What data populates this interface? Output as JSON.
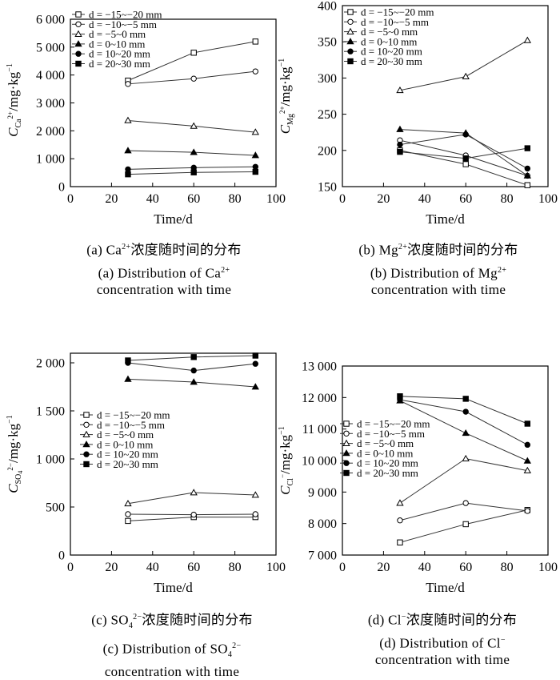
{
  "chart_data": [
    {
      "panel": "a",
      "type": "line",
      "xlabel": "Time/d",
      "ylabel": "C_Ca2+/mg·kg⁻¹",
      "ylabel_main": "C",
      "ylabel_sub": "Ca",
      "ylabel_sup": "2+",
      "ylabel_unit": "/mg·kg",
      "ylabel_exp": "−1",
      "xlim": [
        0,
        100
      ],
      "ylim": [
        0,
        6000
      ],
      "xticks": [
        0,
        20,
        40,
        60,
        80,
        100
      ],
      "xtick_labels": [
        "0",
        "20",
        "40",
        "60",
        "80",
        "100"
      ],
      "yticks": [
        0,
        1000,
        2000,
        3000,
        4000,
        5000,
        6000
      ],
      "ytick_labels": [
        "0",
        "1 000",
        "2 000",
        "3 000",
        "4 000",
        "5 000",
        "6 000"
      ],
      "x": [
        28,
        60,
        90
      ],
      "series": [
        {
          "name": "d = −15~−20 mm",
          "marker": "square-open",
          "values": [
            3800,
            4800,
            5200
          ]
        },
        {
          "name": "d = −10~−5 mm",
          "marker": "circle-open",
          "values": [
            3680,
            3870,
            4130
          ]
        },
        {
          "name": "d = −5~0 mm",
          "marker": "triangle-open",
          "values": [
            2370,
            2170,
            1950
          ]
        },
        {
          "name": "d = 0~10 mm",
          "marker": "triangle-filled",
          "values": [
            1290,
            1230,
            1120
          ]
        },
        {
          "name": "d = 10~20 mm",
          "marker": "circle-filled",
          "values": [
            620,
            680,
            710
          ]
        },
        {
          "name": "d = 20~30 mm",
          "marker": "square-filled",
          "values": [
            440,
            510,
            530
          ]
        }
      ],
      "caption_cn_pre": "(a) Ca",
      "caption_cn_sup": "2+",
      "caption_cn_post": "浓度随时间的分布",
      "caption_en1_pre": "(a) Distribution of Ca",
      "caption_en1_sup": "2+",
      "caption_en2": "concentration with time"
    },
    {
      "panel": "b",
      "type": "line",
      "xlabel": "Time/d",
      "ylabel": "C_Mg2+/mg·kg⁻¹",
      "ylabel_main": "C",
      "ylabel_sub": "Mg",
      "ylabel_sup": "2+",
      "ylabel_unit": "/mg·kg",
      "ylabel_exp": "−1",
      "xlim": [
        0,
        100
      ],
      "ylim": [
        150,
        400
      ],
      "xticks": [
        0,
        20,
        40,
        60,
        80,
        100
      ],
      "xtick_labels": [
        "0",
        "20",
        "40",
        "60",
        "80",
        "100"
      ],
      "yticks": [
        150,
        200,
        250,
        300,
        350,
        400
      ],
      "ytick_labels": [
        "150",
        "200",
        "250",
        "300",
        "350",
        "400"
      ],
      "x": [
        28,
        60,
        90
      ],
      "series": [
        {
          "name": "d = −15~−20 mm",
          "marker": "square-open",
          "values": [
            200,
            181,
            152
          ]
        },
        {
          "name": "d = −10~−5 mm",
          "marker": "circle-open",
          "values": [
            214,
            193,
            165
          ]
        },
        {
          "name": "d = −5~0 mm",
          "marker": "triangle-open",
          "values": [
            283,
            302,
            352
          ]
        },
        {
          "name": "d = 0~10 mm",
          "marker": "triangle-filled",
          "values": [
            229,
            224,
            165
          ]
        },
        {
          "name": "d = 10~20 mm",
          "marker": "circle-filled",
          "values": [
            208,
            222,
            175
          ]
        },
        {
          "name": "d = 20~30 mm",
          "marker": "square-filled",
          "values": [
            198,
            189,
            203
          ]
        }
      ],
      "caption_cn_pre": "(b) Mg",
      "caption_cn_sup": "2+",
      "caption_cn_post": "浓度随时间的分布",
      "caption_en1_pre": "(b) Distribution of Mg",
      "caption_en1_sup": "2+",
      "caption_en2": "concentration with time"
    },
    {
      "panel": "c",
      "type": "line",
      "xlabel": "Time/d",
      "ylabel": "C_SO42−/mg·kg⁻¹",
      "ylabel_main": "C",
      "ylabel_sub": "SO",
      "ylabel_sub2": "4",
      "ylabel_sup": "2−",
      "ylabel_unit": "/mg·kg",
      "ylabel_exp": "−1",
      "xlim": [
        0,
        100
      ],
      "ylim": [
        0,
        2100
      ],
      "xticks": [
        0,
        20,
        40,
        60,
        80,
        100
      ],
      "xtick_labels": [
        "0",
        "20",
        "40",
        "60",
        "80",
        "100"
      ],
      "yticks": [
        0,
        500,
        1000,
        1500,
        2000
      ],
      "ytick_labels": [
        "0",
        "500",
        "1 000",
        "1 500",
        "2 000"
      ],
      "x": [
        28,
        60,
        90
      ],
      "series": [
        {
          "name": "d = −15~−20 mm",
          "marker": "square-open",
          "values": [
            355,
            395,
            395
          ]
        },
        {
          "name": "d = −10~−5 mm",
          "marker": "circle-open",
          "values": [
            425,
            420,
            425
          ]
        },
        {
          "name": "d = −5~0 mm",
          "marker": "triangle-open",
          "values": [
            535,
            650,
            625
          ]
        },
        {
          "name": "d = 0~10 mm",
          "marker": "triangle-filled",
          "values": [
            1830,
            1800,
            1750
          ]
        },
        {
          "name": "d = 10~20 mm",
          "marker": "circle-filled",
          "values": [
            2000,
            1920,
            1990
          ]
        },
        {
          "name": "d = 20~30 mm",
          "marker": "square-filled",
          "values": [
            2025,
            2060,
            2075
          ]
        }
      ],
      "caption_cn_pre": "(c) SO",
      "caption_cn_sub": "4",
      "caption_cn_sup": "2−",
      "caption_cn_post": "浓度随时间的分布",
      "caption_en1_pre": "(c) Distribution of SO",
      "caption_en1_sub": "4",
      "caption_en1_sup": "2−",
      "caption_en2": "concentration with time"
    },
    {
      "panel": "d",
      "type": "line",
      "xlabel": "Time/d",
      "ylabel": "C_Cl−/mg·kg⁻¹",
      "ylabel_main": "C",
      "ylabel_sub": "Cl",
      "ylabel_sup": "−",
      "ylabel_unit": "/mg·kg",
      "ylabel_exp": "−1",
      "xlim": [
        0,
        100
      ],
      "ylim": [
        7000,
        13000
      ],
      "xticks": [
        0,
        20,
        40,
        60,
        80,
        100
      ],
      "xtick_labels": [
        "0",
        "20",
        "40",
        "60",
        "80",
        "100"
      ],
      "yticks": [
        7000,
        8000,
        9000,
        10000,
        11000,
        12000,
        13000
      ],
      "ytick_labels": [
        "7 000",
        "8 000",
        "9 000",
        "10 000",
        "11 000",
        "12 000",
        "13 000"
      ],
      "x": [
        28,
        60,
        90
      ],
      "series": [
        {
          "name": "d = −15~−20 mm",
          "marker": "square-open",
          "values": [
            7400,
            7980,
            8430
          ]
        },
        {
          "name": "d = −10~−5 mm",
          "marker": "circle-open",
          "values": [
            8100,
            8650,
            8400
          ]
        },
        {
          "name": "d = −5~0 mm",
          "marker": "triangle-open",
          "values": [
            8650,
            10060,
            9680
          ]
        },
        {
          "name": "d = 0~10 mm",
          "marker": "triangle-filled",
          "values": [
            11900,
            10870,
            9990
          ]
        },
        {
          "name": "d = 10~20 mm",
          "marker": "circle-filled",
          "values": [
            11930,
            11550,
            10500
          ]
        },
        {
          "name": "d = 20~30 mm",
          "marker": "square-filled",
          "values": [
            12040,
            11960,
            11170
          ]
        }
      ],
      "caption_cn_pre": "(d) Cl",
      "caption_cn_sup": "−",
      "caption_cn_post": "浓度随时间的分布",
      "caption_en1_pre": "(d) Distribution of Cl",
      "caption_en1_sup": "−",
      "caption_en2": "concentration with time"
    }
  ]
}
